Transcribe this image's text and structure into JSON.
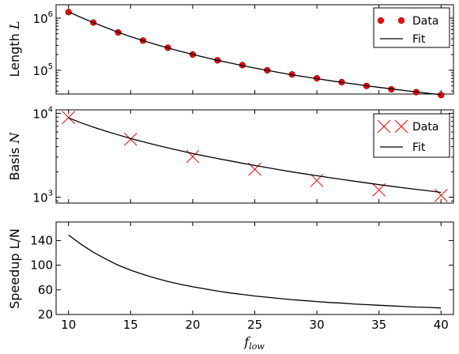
{
  "chart_data": [
    {
      "type": "scatter",
      "ylabel_text": "Length",
      "ylabel_symbol": "L",
      "yscale": "log",
      "ylim": [
        35000,
        1800000
      ],
      "xlim": [
        9,
        41
      ],
      "ytick_labels": [
        {
          "base": "10",
          "exp": "5",
          "value": 100000
        },
        {
          "base": "10",
          "exp": "6",
          "value": 1000000
        }
      ],
      "legend_placement": "top-right",
      "series": [
        {
          "name": "Data",
          "kind": "points",
          "marker": "circle",
          "color": "#ff0000",
          "x": [
            10,
            12,
            14,
            16,
            18,
            20,
            22,
            24,
            26,
            28,
            30,
            32,
            34,
            36,
            38,
            40
          ],
          "y": [
            1300000,
            820000,
            530000,
            370000,
            270000,
            200000,
            155000,
            125000,
            100000,
            83000,
            70000,
            59000,
            50000,
            43000,
            38000,
            33500
          ]
        },
        {
          "name": "Fit",
          "kind": "line",
          "color": "#000000",
          "x": [
            10,
            11,
            12,
            13,
            14,
            15,
            16,
            17,
            18,
            19,
            20,
            21,
            22,
            23,
            24,
            25,
            26,
            27,
            28,
            29,
            30,
            31,
            32,
            33,
            34,
            35,
            36,
            37,
            38,
            39,
            40
          ],
          "y": [
            1320000,
            1030000,
            820000,
            660000,
            535000,
            440000,
            370000,
            313000,
            268000,
            231000,
            201000,
            176000,
            155000,
            138000,
            123000,
            110000,
            99500,
            90000,
            82000,
            75000,
            69000,
            63500,
            58500,
            54500,
            50500,
            47000,
            44000,
            41000,
            38500,
            36000,
            34000
          ]
        }
      ]
    },
    {
      "type": "scatter",
      "ylabel_text": "Basis",
      "ylabel_symbol": "N",
      "yscale": "log",
      "ylim": [
        850,
        11000
      ],
      "xlim": [
        9,
        41
      ],
      "ytick_labels": [
        {
          "base": "10",
          "exp": "3",
          "value": 1000
        },
        {
          "base": "10",
          "exp": "4",
          "value": 10000
        }
      ],
      "legend_placement": "top-right",
      "series": [
        {
          "name": "Data",
          "kind": "points",
          "marker": "x",
          "color": "#ff0000",
          "x": [
            10,
            15,
            20,
            25,
            30,
            35,
            40
          ],
          "y": [
            8900,
            4900,
            3050,
            2150,
            1580,
            1220,
            1050
          ]
        },
        {
          "name": "Fit",
          "kind": "line",
          "color": "#000000",
          "x": [
            10,
            11,
            12,
            13,
            14,
            15,
            16,
            17,
            18,
            19,
            20,
            21,
            22,
            23,
            24,
            25,
            26,
            27,
            28,
            29,
            30,
            31,
            32,
            33,
            34,
            35,
            36,
            37,
            38,
            39,
            40
          ],
          "y": [
            8800,
            7720,
            6850,
            6130,
            5530,
            5010,
            4580,
            4200,
            3870,
            3580,
            3320,
            3090,
            2890,
            2710,
            2540,
            2390,
            2250,
            2120,
            2000,
            1900,
            1800,
            1710,
            1630,
            1550,
            1480,
            1410,
            1350,
            1290,
            1240,
            1190,
            1140
          ]
        }
      ]
    },
    {
      "type": "line",
      "ylabel_text": "Speedup L/N",
      "yscale": "linear",
      "ylim": [
        20,
        170
      ],
      "xlim": [
        9,
        41
      ],
      "yticks": [
        "20",
        "60",
        "100",
        "140"
      ],
      "ytick_values": [
        20,
        60,
        100,
        140
      ],
      "xticks": [
        "10",
        "15",
        "20",
        "25",
        "30",
        "35",
        "40"
      ],
      "xtick_values": [
        10,
        15,
        20,
        25,
        30,
        35,
        40
      ],
      "xlabel_symbol": "f",
      "xlabel_subscript": "low",
      "series": [
        {
          "kind": "line",
          "color": "#000000",
          "x": [
            10,
            11,
            12,
            13,
            14,
            15,
            16,
            17,
            18,
            19,
            20,
            21,
            22,
            23,
            24,
            25,
            26,
            27,
            28,
            29,
            30,
            31,
            32,
            33,
            34,
            35,
            36,
            37,
            38,
            39,
            40
          ],
          "y": [
            149,
            134,
            121,
            110,
            100,
            92,
            85,
            79,
            73.5,
            69,
            65,
            61.5,
            58,
            55,
            52.5,
            50,
            48,
            46,
            44,
            42.5,
            41,
            39.5,
            38.5,
            37,
            36,
            35,
            34,
            33,
            32,
            31.5,
            30.5
          ]
        }
      ]
    }
  ],
  "legend_labels": {
    "data": "Data",
    "fit": "Fit"
  }
}
